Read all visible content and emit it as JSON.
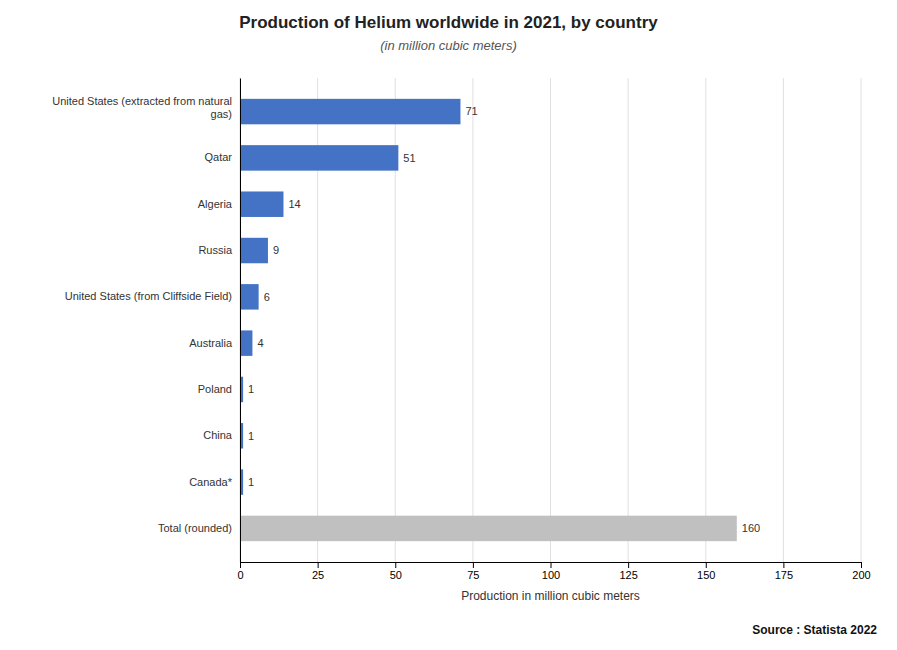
{
  "chart_data": {
    "type": "bar",
    "orientation": "horizontal",
    "title": "Production of Helium worldwide in 2021, by country",
    "subtitle": "(in million cubic meters)",
    "xlabel": "Production in million cubic meters",
    "categories": [
      "Total (rounded)",
      "Canada*",
      "China",
      "Poland",
      "Australia",
      "United States (from Cliffside Field)",
      "Russia",
      "Algeria",
      "Qatar",
      "United States (extracted from natural\ngas)"
    ],
    "values": [
      160,
      1,
      1,
      1,
      4,
      6,
      9,
      14,
      51,
      71
    ],
    "colors": [
      "#c0c0c0",
      "#4472c4",
      "#4472c4",
      "#4472c4",
      "#4472c4",
      "#4472c4",
      "#4472c4",
      "#4472c4",
      "#4472c4",
      "#4472c4"
    ],
    "xlim": [
      0,
      200
    ],
    "xticks": [
      0,
      25,
      50,
      75,
      100,
      125,
      150,
      175,
      200
    ],
    "grid": true,
    "data_labels": true,
    "annotations": [
      "Source : Statista 2022"
    ]
  }
}
